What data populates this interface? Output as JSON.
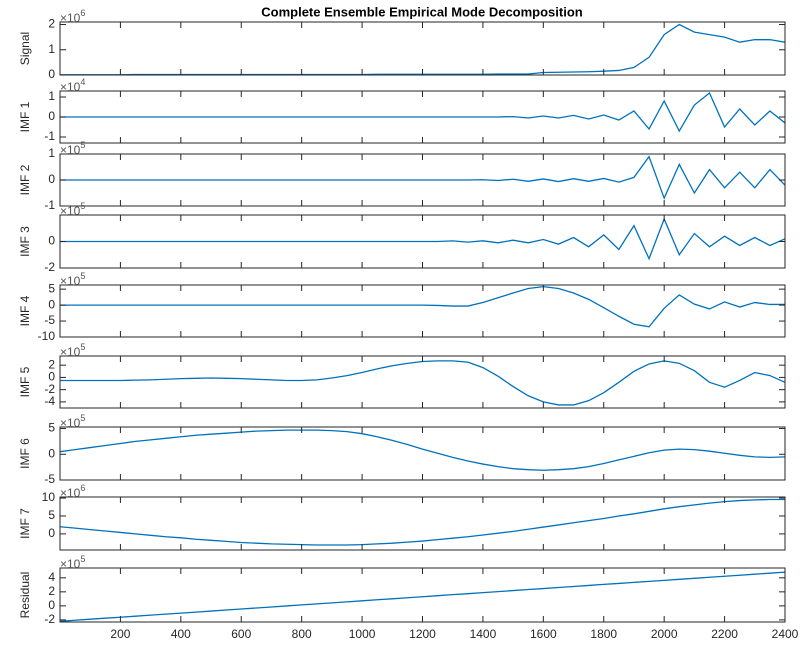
{
  "chart_data": {
    "type": "line",
    "title": "Complete Ensemble Empirical Mode Decomposition",
    "color": "#0072bd",
    "x": [
      0,
      50,
      100,
      150,
      200,
      250,
      300,
      350,
      400,
      450,
      500,
      550,
      600,
      650,
      700,
      750,
      800,
      850,
      900,
      950,
      1000,
      1050,
      1100,
      1150,
      1200,
      1250,
      1300,
      1350,
      1400,
      1450,
      1500,
      1550,
      1600,
      1650,
      1700,
      1750,
      1800,
      1850,
      1900,
      1950,
      2000,
      2050,
      2100,
      2150,
      2200,
      2250,
      2300,
      2350,
      2400
    ],
    "xlim": [
      0,
      2400
    ],
    "xticks": [
      200,
      400,
      600,
      800,
      1000,
      1200,
      1400,
      1600,
      1800,
      2000,
      2200,
      2400
    ],
    "subplots": [
      {
        "ylabel": "Signal",
        "multiplier": "×10",
        "exponent": "6",
        "ylim": [
          0,
          2.1
        ],
        "yticks": [
          0,
          1,
          2
        ],
        "values": [
          0.01,
          0.01,
          0.01,
          0.01,
          0.01,
          0.02,
          0.02,
          0.02,
          0.02,
          0.02,
          0.02,
          0.02,
          0.02,
          0.02,
          0.02,
          0.02,
          0.02,
          0.02,
          0.02,
          0.02,
          0.02,
          0.03,
          0.03,
          0.03,
          0.03,
          0.03,
          0.03,
          0.03,
          0.03,
          0.04,
          0.04,
          0.04,
          0.1,
          0.11,
          0.12,
          0.13,
          0.15,
          0.18,
          0.3,
          0.7,
          1.6,
          2.0,
          1.7,
          1.6,
          1.5,
          1.3,
          1.4,
          1.4,
          1.3
        ]
      },
      {
        "ylabel": "IMF 1",
        "multiplier": "×10",
        "exponent": "4",
        "ylim": [
          -1.3,
          1.3
        ],
        "yticks": [
          -1,
          0,
          1
        ],
        "values": [
          0,
          0,
          0,
          0,
          0,
          0,
          0,
          0,
          0,
          0,
          0,
          0,
          0,
          0,
          0,
          0,
          0,
          0,
          0,
          0,
          0,
          0,
          0,
          0,
          0,
          0,
          0,
          0,
          0,
          0,
          0.02,
          -0.05,
          0.05,
          -0.05,
          0.08,
          -0.1,
          0.1,
          -0.15,
          0.3,
          -0.6,
          0.8,
          -0.7,
          0.6,
          1.2,
          -0.5,
          0.4,
          -0.4,
          0.3,
          -0.3
        ]
      },
      {
        "ylabel": "IMF 2",
        "multiplier": "×10",
        "exponent": "5",
        "ylim": [
          -1,
          1
        ],
        "yticks": [
          -1,
          0,
          1
        ],
        "values": [
          0,
          0,
          0,
          0,
          0,
          0,
          0,
          0,
          0,
          0,
          0,
          0,
          0,
          0,
          0,
          0,
          0,
          0,
          0,
          0,
          0,
          0,
          0,
          0,
          0,
          0,
          0,
          0,
          0.01,
          -0.02,
          0.03,
          -0.05,
          0.04,
          -0.06,
          0.05,
          -0.05,
          0.06,
          -0.08,
          0.1,
          0.9,
          -0.7,
          0.6,
          -0.5,
          0.4,
          -0.3,
          0.3,
          -0.3,
          0.4,
          -0.2
        ]
      },
      {
        "ylabel": "IMF 3",
        "multiplier": "×10",
        "exponent": "5",
        "ylim": [
          -2,
          2
        ],
        "yticks": [
          -2,
          0
        ],
        "values": [
          0,
          0,
          0,
          0,
          0,
          0,
          0,
          0,
          0,
          0,
          0,
          0,
          0,
          0,
          0,
          0,
          0,
          0,
          0,
          0,
          0,
          0,
          0,
          0,
          0,
          0,
          0.05,
          -0.05,
          0.05,
          -0.1,
          0.1,
          -0.1,
          0.15,
          -0.2,
          0.3,
          -0.4,
          0.5,
          -0.6,
          1.2,
          -1.3,
          1.7,
          -1.0,
          0.6,
          -0.4,
          0.4,
          -0.3,
          0.3,
          -0.3,
          0.2
        ]
      },
      {
        "ylabel": "IMF 4",
        "multiplier": "×10",
        "exponent": "5",
        "ylim": [
          -10,
          6.3
        ],
        "yticks": [
          -10,
          -5,
          0,
          5
        ],
        "values": [
          0,
          0,
          0,
          0,
          0,
          0,
          0,
          0,
          0,
          0,
          0,
          0,
          0,
          0,
          0,
          0,
          0,
          0,
          0,
          0,
          0,
          0,
          0,
          0,
          0,
          -0.1,
          -0.3,
          -0.3,
          0.8,
          2.3,
          3.8,
          5.2,
          5.8,
          5.2,
          3.8,
          1.8,
          -0.8,
          -3.5,
          -6,
          -6.8,
          -1,
          3.2,
          0.3,
          -1.2,
          1,
          -0.6,
          0.8,
          0.2,
          0.2
        ]
      },
      {
        "ylabel": "IMF 5",
        "multiplier": "×10",
        "exponent": "5",
        "ylim": [
          -5,
          3.5
        ],
        "yticks": [
          -4,
          -2,
          0,
          2
        ],
        "values": [
          -0.5,
          -0.5,
          -0.5,
          -0.5,
          -0.5,
          -0.45,
          -0.4,
          -0.3,
          -0.2,
          -0.15,
          -0.1,
          -0.15,
          -0.2,
          -0.3,
          -0.4,
          -0.5,
          -0.5,
          -0.4,
          -0.1,
          0.3,
          0.8,
          1.4,
          1.9,
          2.3,
          2.6,
          2.7,
          2.7,
          2.5,
          1.6,
          0.2,
          -1.5,
          -3,
          -4,
          -4.5,
          -4.5,
          -3.8,
          -2.5,
          -0.8,
          1,
          2.2,
          2.7,
          2.3,
          1.1,
          -0.8,
          -1.6,
          -0.5,
          0.8,
          0.3,
          -0.8
        ]
      },
      {
        "ylabel": "IMF 6",
        "multiplier": "×10",
        "exponent": "5",
        "ylim": [
          -5,
          5.3
        ],
        "yticks": [
          -5,
          0,
          5
        ],
        "values": [
          0.5,
          0.9,
          1.3,
          1.7,
          2.1,
          2.5,
          2.8,
          3.1,
          3.4,
          3.7,
          3.9,
          4.1,
          4.3,
          4.5,
          4.6,
          4.7,
          4.7,
          4.7,
          4.6,
          4.4,
          4,
          3.4,
          2.7,
          1.9,
          1,
          0.2,
          -0.6,
          -1.3,
          -1.9,
          -2.4,
          -2.8,
          -3,
          -3.1,
          -3,
          -2.8,
          -2.4,
          -1.8,
          -1.1,
          -0.4,
          0.3,
          0.8,
          1,
          0.9,
          0.6,
          0.2,
          -0.2,
          -0.5,
          -0.6,
          -0.5
        ]
      },
      {
        "ylabel": "IMF 7",
        "multiplier": "×10",
        "exponent": "6",
        "ylim": [
          -4.5,
          10.3
        ],
        "yticks": [
          0,
          5,
          10
        ],
        "values": [
          2,
          1.6,
          1.2,
          0.8,
          0.4,
          0,
          -0.4,
          -0.8,
          -1.1,
          -1.5,
          -1.8,
          -2.1,
          -2.4,
          -2.6,
          -2.8,
          -2.9,
          -3,
          -3.1,
          -3.1,
          -3.1,
          -3,
          -2.8,
          -2.6,
          -2.3,
          -2,
          -1.6,
          -1.2,
          -0.8,
          -0.3,
          0.2,
          0.7,
          1.3,
          1.9,
          2.5,
          3.1,
          3.7,
          4.3,
          5,
          5.6,
          6.3,
          7,
          7.6,
          8.1,
          8.6,
          9,
          9.3,
          9.5,
          9.6,
          9.6
        ]
      },
      {
        "ylabel": "Residual",
        "multiplier": "×10",
        "exponent": "5",
        "ylim": [
          -2.3,
          5.4
        ],
        "yticks": [
          -2,
          0,
          2,
          4
        ],
        "values": [
          -2.2,
          -2.05,
          -1.9,
          -1.76,
          -1.62,
          -1.47,
          -1.32,
          -1.18,
          -1.03,
          -0.89,
          -0.74,
          -0.59,
          -0.45,
          -0.3,
          -0.16,
          -0.01,
          0.14,
          0.28,
          0.43,
          0.57,
          0.72,
          0.87,
          1.01,
          1.16,
          1.3,
          1.45,
          1.6,
          1.74,
          1.89,
          2.03,
          2.18,
          2.33,
          2.47,
          2.62,
          2.76,
          2.91,
          3.06,
          3.2,
          3.35,
          3.49,
          3.64,
          3.79,
          3.93,
          4.08,
          4.22,
          4.37,
          4.52,
          4.66,
          4.81
        ]
      }
    ]
  }
}
